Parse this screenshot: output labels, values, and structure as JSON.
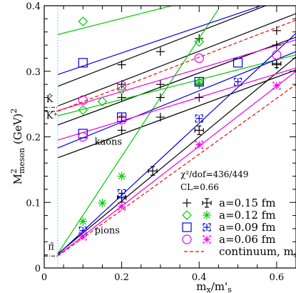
{
  "chart_data": {
    "type": "line",
    "xlabel": "m_x/m'_s",
    "ylabel": "M²meson (GeV)²",
    "xlim": [
      0,
      0.65
    ],
    "ylim": [
      0,
      0.4
    ],
    "x_ticks": [
      {
        "v": 0,
        "label": "0"
      },
      {
        "v": 0.2,
        "label": "0.2"
      },
      {
        "v": 0.4,
        "label": "0.4"
      },
      {
        "v": 0.6,
        "label": "0.6"
      }
    ],
    "y_ticks": [
      {
        "v": 0,
        "label": "0"
      },
      {
        "v": 0.1,
        "label": "0.1"
      },
      {
        "v": 0.2,
        "label": "0.2"
      },
      {
        "v": 0.3,
        "label": "0.3"
      },
      {
        "v": 0.4,
        "label": "0.4"
      }
    ],
    "physical_point_x": 0.035,
    "fit_text": {
      "chi2": "χ²/dof=436/449",
      "cl": "CL=0.66"
    },
    "annotations": [
      {
        "name": "kaons-label",
        "text": "kaons",
        "x": 0.13,
        "y": 0.188
      },
      {
        "name": "pions-label",
        "text": "pions",
        "x": 0.13,
        "y": 0.053
      },
      {
        "name": "khat-label",
        "text": "K̂",
        "x": 0.005,
        "y": 0.253
      },
      {
        "name": "kplus-label",
        "text": "K⁺",
        "x": 0.005,
        "y": 0.228
      },
      {
        "name": "pihat-label",
        "text": "π̂",
        "x": 0.01,
        "y": 0.028
      }
    ],
    "reference_levels": [
      {
        "name": "khat-level",
        "y": 0.245
      },
      {
        "name": "kplus-level",
        "y": 0.239
      },
      {
        "name": "pihat-level",
        "y": 0.0182
      }
    ],
    "colors": {
      "a015": "#000000",
      "a012": "#00cc00",
      "a009": "#0000dd",
      "a006": "#ee00ee",
      "continuum": "#ff0000",
      "physical_line": "#33cccc"
    },
    "lines": [
      {
        "series": "a015",
        "x": [
          0.035,
          0.65
        ],
        "y": [
          0.0215,
          0.322
        ]
      },
      {
        "series": "a015",
        "x": [
          0.035,
          0.65
        ],
        "y": [
          0.168,
          0.302
        ]
      },
      {
        "series": "a015",
        "x": [
          0.035,
          0.65
        ],
        "y": [
          0.218,
          0.352
        ]
      },
      {
        "series": "a015",
        "x": [
          0.035,
          0.65
        ],
        "y": [
          0.247,
          0.388
        ]
      },
      {
        "series": "a015",
        "x": [
          0.035,
          0.65
        ],
        "y": [
          0.277,
          0.418
        ]
      },
      {
        "series": "a012",
        "x": [
          0.035,
          0.45
        ],
        "y": [
          0.022,
          0.395
        ]
      },
      {
        "series": "a012",
        "x": [
          0.035,
          0.65
        ],
        "y": [
          0.232,
          0.325
        ]
      },
      {
        "series": "a012",
        "x": [
          0.035,
          0.45
        ],
        "y": [
          0.356,
          0.418
        ]
      },
      {
        "series": "a009",
        "x": [
          0.035,
          0.65
        ],
        "y": [
          0.0205,
          0.358
        ]
      },
      {
        "series": "a009",
        "x": [
          0.035,
          0.65
        ],
        "y": [
          0.183,
          0.33
        ]
      },
      {
        "series": "a009",
        "x": [
          0.035,
          0.65
        ],
        "y": [
          0.295,
          0.418
        ]
      },
      {
        "series": "a006",
        "x": [
          0.035,
          0.65
        ],
        "y": [
          0.019,
          0.3
        ]
      },
      {
        "series": "a006",
        "x": [
          0.035,
          0.65
        ],
        "y": [
          0.195,
          0.305
        ]
      },
      {
        "series": "a006",
        "x": [
          0.035,
          0.65
        ],
        "y": [
          0.24,
          0.348
        ]
      },
      {
        "series": "continuum",
        "x": [
          0.035,
          0.65
        ],
        "y": [
          0.0182,
          0.28
        ],
        "dash": true
      },
      {
        "series": "continuum",
        "x": [
          0.035,
          0.65
        ],
        "y": [
          0.239,
          0.378
        ],
        "dash": true
      }
    ],
    "points": [
      {
        "series": "a015",
        "marker": "plus",
        "x": 0.2,
        "y": 0.31
      },
      {
        "series": "a015",
        "marker": "plus",
        "x": 0.3,
        "y": 0.33
      },
      {
        "series": "a015",
        "marker": "plus",
        "x": 0.4,
        "y": 0.35
      },
      {
        "series": "a015",
        "marker": "plus",
        "x": 0.6,
        "y": 0.362
      },
      {
        "series": "a015",
        "marker": "plus",
        "x": 0.2,
        "y": 0.28
      },
      {
        "series": "a015",
        "marker": "plus",
        "x": 0.3,
        "y": 0.28
      },
      {
        "series": "a015",
        "marker": "plus",
        "x": 0.4,
        "y": 0.28
      },
      {
        "series": "a015",
        "marker": "plus",
        "x": 0.6,
        "y": 0.34
      },
      {
        "series": "a015",
        "marker": "plus",
        "x": 0.2,
        "y": 0.26
      },
      {
        "series": "a015",
        "marker": "plus",
        "x": 0.3,
        "y": 0.26
      },
      {
        "series": "a015",
        "marker": "plus",
        "x": 0.4,
        "y": 0.26
      },
      {
        "series": "a015",
        "marker": "plus",
        "x": 0.6,
        "y": 0.31
      },
      {
        "series": "a015",
        "marker": "plus",
        "x": 0.2,
        "y": 0.23
      },
      {
        "series": "a015",
        "marker": "plus",
        "x": 0.3,
        "y": 0.23
      },
      {
        "series": "a015",
        "marker": "plus",
        "x": 0.2,
        "y": 0.21
      },
      {
        "series": "a015",
        "marker": "errplus",
        "x": 0.2,
        "y": 0.107
      },
      {
        "series": "a015",
        "marker": "errplus",
        "x": 0.28,
        "y": 0.148
      },
      {
        "series": "a015",
        "marker": "errplus",
        "x": 0.4,
        "y": 0.21
      },
      {
        "series": "a015",
        "marker": "errplus",
        "x": 0.6,
        "y": 0.312
      },
      {
        "series": "a012",
        "marker": "diamond",
        "x": 0.1,
        "y": 0.376
      },
      {
        "series": "a012",
        "marker": "diamond",
        "x": 0.4,
        "y": 0.345
      },
      {
        "series": "a012",
        "marker": "diamond",
        "x": 0.15,
        "y": 0.254
      },
      {
        "series": "a012",
        "marker": "diamond",
        "x": 0.2,
        "y": 0.272
      },
      {
        "series": "a012",
        "marker": "diamond",
        "x": 0.4,
        "y": 0.283
      },
      {
        "series": "a012",
        "marker": "diamond",
        "x": 0.1,
        "y": 0.241
      },
      {
        "series": "a012",
        "marker": "star",
        "x": 0.1,
        "y": 0.071
      },
      {
        "series": "a012",
        "marker": "star",
        "x": 0.15,
        "y": 0.099
      },
      {
        "series": "a012",
        "marker": "star",
        "x": 0.2,
        "y": 0.14
      },
      {
        "series": "a012",
        "marker": "star",
        "x": 0.4,
        "y": 0.282
      },
      {
        "series": "a009",
        "marker": "square",
        "x": 0.1,
        "y": 0.313
      },
      {
        "series": "a009",
        "marker": "square",
        "x": 0.5,
        "y": 0.313
      },
      {
        "series": "a009",
        "marker": "square",
        "x": 0.4,
        "y": 0.284
      },
      {
        "series": "a009",
        "marker": "square",
        "x": 0.2,
        "y": 0.23
      },
      {
        "series": "a009",
        "marker": "square",
        "x": 0.1,
        "y": 0.205
      },
      {
        "series": "a009",
        "marker": "sqcross",
        "x": 0.1,
        "y": 0.057
      },
      {
        "series": "a009",
        "marker": "sqcross",
        "x": 0.2,
        "y": 0.114
      },
      {
        "series": "a009",
        "marker": "sqcross",
        "x": 0.4,
        "y": 0.228
      },
      {
        "series": "a009",
        "marker": "sqcross",
        "x": 0.5,
        "y": 0.284
      },
      {
        "series": "a006",
        "marker": "circle",
        "x": 0.1,
        "y": 0.256
      },
      {
        "series": "a006",
        "marker": "circle",
        "x": 0.2,
        "y": 0.278
      },
      {
        "series": "a006",
        "marker": "circle",
        "x": 0.4,
        "y": 0.32
      },
      {
        "series": "a006",
        "marker": "circle",
        "x": 0.6,
        "y": 0.325
      },
      {
        "series": "a006",
        "marker": "circle",
        "x": 0.2,
        "y": 0.226
      },
      {
        "series": "a006",
        "marker": "circle",
        "x": 0.1,
        "y": 0.2
      },
      {
        "series": "a006",
        "marker": "burst",
        "x": 0.1,
        "y": 0.048
      },
      {
        "series": "a006",
        "marker": "burst",
        "x": 0.2,
        "y": 0.094
      },
      {
        "series": "a006",
        "marker": "burst",
        "x": 0.4,
        "y": 0.188
      },
      {
        "series": "a006",
        "marker": "burst",
        "x": 0.6,
        "y": 0.278
      }
    ],
    "legend": {
      "placement": "bottom-right",
      "entries": [
        {
          "series": "a015",
          "markers": [
            "plus",
            "errplus"
          ],
          "label": "a=0.15 fm"
        },
        {
          "series": "a012",
          "markers": [
            "diamond",
            "star"
          ],
          "label": "a=0.12 fm"
        },
        {
          "series": "a009",
          "markers": [
            "square",
            "sqcross"
          ],
          "label": "a=0.09 fm"
        },
        {
          "series": "a006",
          "markers": [
            "circle",
            "burst"
          ],
          "label": "a=0.06 fm"
        },
        {
          "series": "continuum",
          "markers": [
            "dash"
          ],
          "label": "continuum, m",
          "label_sub": "s"
        }
      ]
    }
  }
}
